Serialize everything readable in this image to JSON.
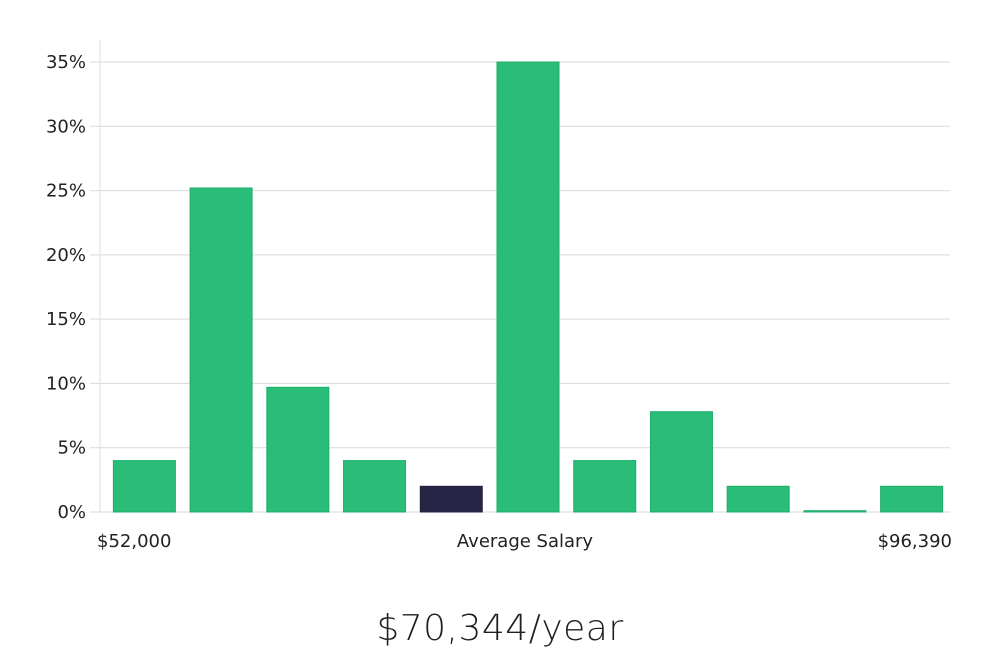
{
  "chart_data": {
    "type": "bar",
    "title": "",
    "xlabel": "Average Salary",
    "ylabel": "",
    "ylim": [
      0,
      35
    ],
    "yticks": [
      0,
      5,
      10,
      15,
      20,
      25,
      30,
      35
    ],
    "ytick_suffix": "%",
    "x_min_label": "$52,000",
    "x_max_label": "$96,390",
    "values": [
      4,
      25.2,
      9.7,
      4,
      2,
      35,
      4,
      7.8,
      2,
      0.1,
      2
    ],
    "highlight_index": 4,
    "grid": true
  },
  "colors": {
    "bar": "#2abd77",
    "bar_edge": "#1fae6a",
    "highlight": "#262545",
    "grid": "#d9d9d9",
    "axis": "#dddddd"
  },
  "summary": {
    "salary": "$70,344/year"
  }
}
